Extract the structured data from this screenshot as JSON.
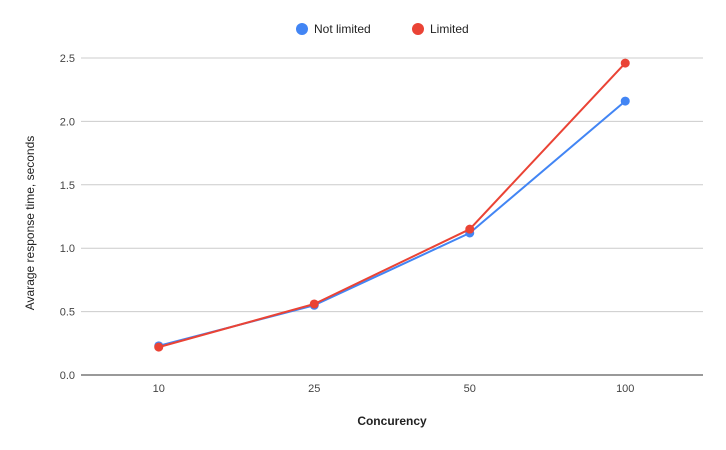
{
  "chart_data": {
    "type": "line",
    "title": "",
    "xlabel": "Concurency",
    "ylabel": "Avarage response time, seconds",
    "categories": [
      "10",
      "25",
      "50",
      "100"
    ],
    "ylim": [
      0,
      2.5
    ],
    "yticks": [
      "0.0",
      "0.5",
      "1.0",
      "1.5",
      "2.0",
      "2.5"
    ],
    "grid": true,
    "legend_position": "top",
    "series": [
      {
        "name": "Not limited",
        "color": "#4285f4",
        "values": [
          0.23,
          0.55,
          1.12,
          2.16
        ]
      },
      {
        "name": "Limited",
        "color": "#ea4335",
        "values": [
          0.22,
          0.56,
          1.15,
          2.46
        ]
      }
    ]
  }
}
